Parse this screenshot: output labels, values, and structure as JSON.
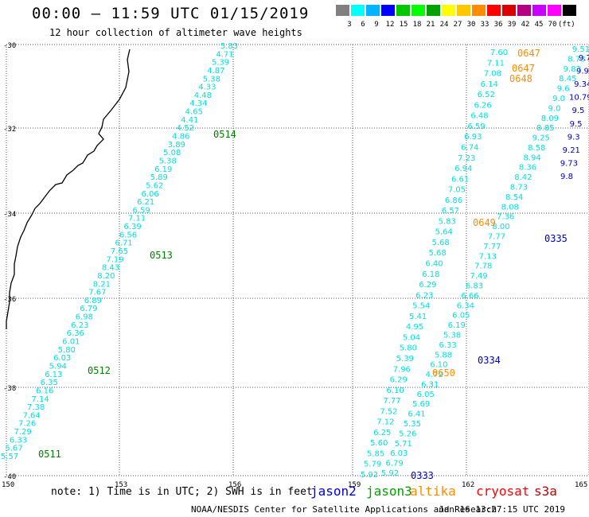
{
  "title": "00:00 – 11:59 UTC 01/15/2019",
  "subtitle": "12 hour collection of altimeter wave heights",
  "colorbar": {
    "colors": [
      "#808080",
      "#00ffff",
      "#00b4ff",
      "#0000ff",
      "#00c800",
      "#00ff00",
      "#00a000",
      "#ffff00",
      "#ffc800",
      "#ff8c00",
      "#ff0000",
      "#dc0000",
      "#b40080",
      "#c800ff",
      "#ff00ff",
      "#000000"
    ],
    "labels": [
      "3",
      "6",
      "9",
      "12",
      "15",
      "18",
      "21",
      "24",
      "27",
      "30",
      "33",
      "36",
      "39",
      "42",
      "45",
      "70",
      "(ft)"
    ]
  },
  "map": {
    "lat_labels": [
      "-30",
      "-32",
      "-34",
      "-36",
      "-38",
      "-40"
    ],
    "lon_labels": [
      "150",
      "153",
      "156",
      "159",
      "162",
      "165"
    ]
  },
  "tracks": [
    {
      "name": "jason3-west",
      "color": "#00e0e0",
      "values": [
        "5.83",
        "4.71",
        "5.39",
        "4.87",
        "5.38",
        "4.33",
        "4.48",
        "4.34",
        "4.65",
        "4.41",
        "4.52",
        "4.86",
        "3.89",
        "5.08",
        "5.38",
        "6.19",
        "5.89",
        "5.62",
        "6.06",
        "6.21",
        "6.59",
        "7.11",
        "6.39",
        "6.56",
        "6.71",
        "7.65",
        "7.19",
        "8.43",
        "8.20",
        "8.21",
        "7.67",
        "6.89",
        "6.79",
        "6.98",
        "6.23",
        "6.36",
        "6.01",
        "5.80",
        "6.03",
        "5.94",
        "6.13",
        "6.35",
        "6.16",
        "7.14",
        "7.38",
        "7.64",
        "7.26",
        "7.29",
        "6.33",
        "5.67",
        "5.57"
      ]
    },
    {
      "name": "jason3-east",
      "color": "#00e0e0",
      "values": [
        "7.60",
        "7.11",
        "7.08",
        "6.14",
        "6.52",
        "6.26",
        "6.48",
        "6.59",
        "6.93",
        "6.74",
        "7.23",
        "6.94",
        "6.61",
        "7.05",
        "6.86",
        "6.57",
        "5.83",
        "5.64",
        "5.68",
        "5.68",
        "6.40",
        "6.18",
        "6.29",
        "6.23",
        "5.54",
        "5.41",
        "4.95",
        "5.04",
        "5.80",
        "5.39",
        "7.96",
        "6.29",
        "6.10",
        "7.77",
        "7.52",
        "7.12",
        "6.25",
        "5.60",
        "5.85",
        "5.79",
        "5.92"
      ]
    },
    {
      "name": "jason3-east2",
      "color": "#00e0e0",
      "values": [
        "9.51",
        "8.73",
        "9.83",
        "8.45",
        "9.6",
        "9.0",
        "9.0",
        "8.09",
        "8.85",
        "9.25",
        "8.58",
        "8.94",
        "8.36",
        "8.42",
        "8.73",
        "8.54",
        "8.08",
        "7.36",
        "8.00",
        "7.77",
        "7.77",
        "7.13",
        "7.78",
        "7.49",
        "6.83",
        "6.66",
        "6.34",
        "6.05",
        "6.19",
        "5.38",
        "6.33",
        "5.88",
        "6.10",
        "4.72",
        "6.31",
        "6.05",
        "5.69",
        "6.41",
        "5.35",
        "5.26",
        "5.71",
        "6.03",
        "6.79",
        "5.92"
      ]
    },
    {
      "name": "jason2-dark",
      "color": "#0000c0",
      "values": [
        "9.72",
        "9.90",
        "9.34",
        "10.79",
        "9.5",
        "9.5",
        "9.3",
        "9.21",
        "9.73",
        "9.8"
      ]
    }
  ],
  "pass_labels": [
    {
      "text": "0514",
      "color": "#008000"
    },
    {
      "text": "0513",
      "color": "#008000"
    },
    {
      "text": "0512",
      "color": "#008000"
    },
    {
      "text": "0511",
      "color": "#008000"
    },
    {
      "text": "0647",
      "color": "#ff8c00"
    },
    {
      "text": "0647",
      "color": "#ff8c00"
    },
    {
      "text": "0648",
      "color": "#ff8c00"
    },
    {
      "text": "0649",
      "color": "#ff8c00"
    },
    {
      "text": "0650",
      "color": "#ff8c00"
    },
    {
      "text": "0335",
      "color": "#0000c0"
    },
    {
      "text": "0334",
      "color": "#0000c0"
    },
    {
      "text": "0333",
      "color": "#0000c0"
    }
  ],
  "footer": {
    "note": "note: 1) Time is in UTC; 2) SWH is in feet",
    "credit": "NOAA/NESDIS Center for Satellite Applications and Research",
    "timestamp": "Jan 16 13:27:15 UTC 2019"
  },
  "legend": [
    {
      "name": "jason2",
      "color": "#0000dd"
    },
    {
      "name": "jason3",
      "color": "#00a000"
    },
    {
      "name": "altika",
      "color": "#ff8c00"
    },
    {
      "name": "cryosat",
      "color": "#ff0000"
    },
    {
      "name": "s3a",
      "color": "#c00000"
    }
  ]
}
